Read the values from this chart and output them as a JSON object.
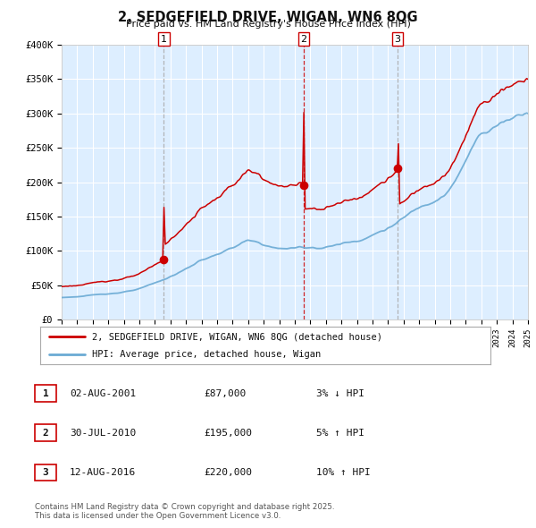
{
  "title": "2, SEDGEFIELD DRIVE, WIGAN, WN6 8QG",
  "subtitle": "Price paid vs. HM Land Registry's House Price Index (HPI)",
  "x_start_year": 1995,
  "x_end_year": 2025,
  "y_min": 0,
  "y_max": 400000,
  "y_ticks": [
    0,
    50000,
    100000,
    150000,
    200000,
    250000,
    300000,
    350000,
    400000
  ],
  "y_tick_labels": [
    "£0",
    "£50K",
    "£100K",
    "£150K",
    "£200K",
    "£250K",
    "£300K",
    "£350K",
    "£400K"
  ],
  "hpi_line_color": "#6aaad4",
  "price_line_color": "#cc0000",
  "plot_bg_color": "#ddeeff",
  "grid_color": "#ffffff",
  "vline_grey_color": "#aaaaaa",
  "vline_red_color": "#cc0000",
  "sale_marker_color": "#cc0000",
  "sale_marker_size": 7,
  "sales": [
    {
      "label": "1",
      "date_year": 2001.58,
      "price": 87000,
      "date_str": "02-AUG-2001",
      "price_str": "£87,000",
      "note": "3% ↓ HPI",
      "vline": "grey"
    },
    {
      "label": "2",
      "date_year": 2010.57,
      "price": 195000,
      "date_str": "30-JUL-2010",
      "price_str": "£195,000",
      "note": "5% ↑ HPI",
      "vline": "red"
    },
    {
      "label": "3",
      "date_year": 2016.61,
      "price": 220000,
      "date_str": "12-AUG-2016",
      "price_str": "£220,000",
      "note": "10% ↑ HPI",
      "vline": "grey"
    }
  ],
  "legend_house_label": "2, SEDGEFIELD DRIVE, WIGAN, WN6 8QG (detached house)",
  "legend_hpi_label": "HPI: Average price, detached house, Wigan",
  "footer_text": "Contains HM Land Registry data © Crown copyright and database right 2025.\nThis data is licensed under the Open Government Licence v3.0.",
  "sale_label_table": [
    [
      "1",
      "02-AUG-2001",
      "£87,000",
      "3% ↓ HPI"
    ],
    [
      "2",
      "30-JUL-2010",
      "£195,000",
      "5% ↑ HPI"
    ],
    [
      "3",
      "12-AUG-2016",
      "£220,000",
      "10% ↑ HPI"
    ]
  ]
}
